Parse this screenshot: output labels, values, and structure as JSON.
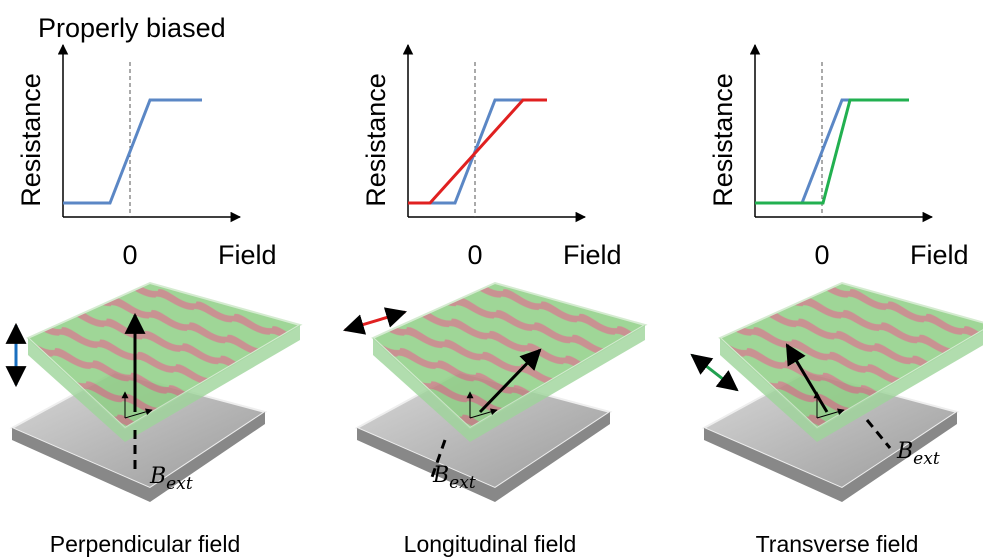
{
  "title": "Properly biased",
  "panels": [
    {
      "y_label": "Resistance",
      "x_label": "Field",
      "zero_label": "0",
      "field_symbol": "B",
      "field_subscript": "ext",
      "caption": "Perpendicular field"
    },
    {
      "y_label": "Resistance",
      "x_label": "Field",
      "zero_label": "0",
      "field_symbol": "B",
      "field_subscript": "ext",
      "caption": "Longitudinal field"
    },
    {
      "y_label": "Resistance",
      "x_label": "Field",
      "zero_label": "0",
      "field_symbol": "B",
      "field_subscript": "ext",
      "caption": "Transverse  field"
    }
  ]
}
